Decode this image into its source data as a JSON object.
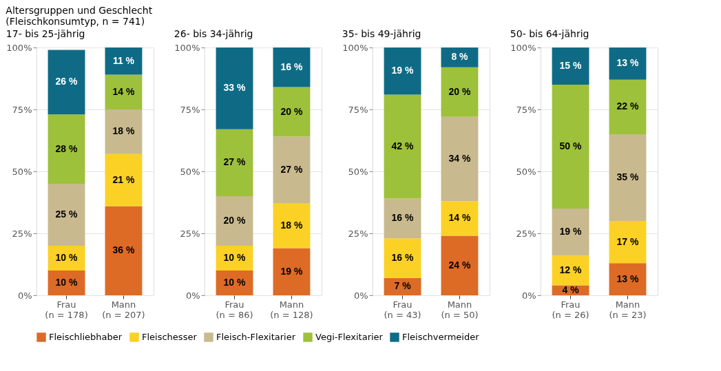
{
  "chart_data": [
    {
      "type": "bar",
      "title": "17- bis 25-jährig",
      "annotations": [
        "Altersgruppen und Geschlecht\n(Fleischkonsumtyp, n = 741)"
      ],
      "categories": [
        "Frau\n(n = 178)",
        "Mann\n(n = 207)"
      ],
      "stacked": true,
      "ylim": [
        0,
        100
      ],
      "yticks": [
        {
          "value": 0,
          "label": "0%"
        },
        {
          "value": 25,
          "label": "25%"
        },
        {
          "value": 50,
          "label": "50%"
        },
        {
          "value": 75,
          "label": "75%"
        },
        {
          "value": 100,
          "label": "100%"
        }
      ],
      "grid": "y",
      "legend": "bottom",
      "series": [
        {
          "name": "Fleischliebhaber",
          "color": "#dd6b26",
          "values": [
            10,
            36
          ],
          "value_labels": [
            "10 %",
            "36 %"
          ]
        },
        {
          "name": "Fleischesser",
          "color": "#fbd125",
          "values": [
            10,
            21
          ],
          "value_labels": [
            "10 %",
            "21 %"
          ]
        },
        {
          "name": "Fleisch-Flexitarier",
          "color": "#c9b98e",
          "values": [
            25,
            18
          ],
          "value_labels": [
            "25 %",
            "18 %"
          ]
        },
        {
          "name": "Vegi-Flexitarier",
          "color": "#9dc13b",
          "values": [
            28,
            14
          ],
          "value_labels": [
            "28 %",
            "14 %"
          ]
        },
        {
          "name": "Fleischvermeider",
          "color": "#0f6b85",
          "values": [
            26,
            11
          ],
          "value_labels": [
            "26 %",
            "11 %"
          ]
        }
      ]
    },
    {
      "type": "bar",
      "title": "26- bis 34-jährig",
      "categories": [
        "Frau\n(n = 86)",
        "Mann\n(n = 128)"
      ],
      "stacked": true,
      "ylim": [
        0,
        100
      ],
      "yticks": [
        {
          "value": 0,
          "label": "0%"
        },
        {
          "value": 25,
          "label": "25%"
        },
        {
          "value": 50,
          "label": "50%"
        },
        {
          "value": 75,
          "label": "75%"
        },
        {
          "value": 100,
          "label": "100%"
        }
      ],
      "grid": "y",
      "series": [
        {
          "name": "Fleischliebhaber",
          "color": "#dd6b26",
          "values": [
            10,
            19
          ],
          "value_labels": [
            "10 %",
            "19 %"
          ]
        },
        {
          "name": "Fleischesser",
          "color": "#fbd125",
          "values": [
            10,
            18
          ],
          "value_labels": [
            "10 %",
            "18 %"
          ]
        },
        {
          "name": "Fleisch-Flexitarier",
          "color": "#c9b98e",
          "values": [
            20,
            27
          ],
          "value_labels": [
            "20 %",
            "27 %"
          ]
        },
        {
          "name": "Vegi-Flexitarier",
          "color": "#9dc13b",
          "values": [
            27,
            20
          ],
          "value_labels": [
            "27 %",
            "20 %"
          ]
        },
        {
          "name": "Fleischvermeider",
          "color": "#0f6b85",
          "values": [
            33,
            16
          ],
          "value_labels": [
            "33 %",
            "16 %"
          ]
        }
      ]
    },
    {
      "type": "bar",
      "title": "35- bis 49-jährig",
      "categories": [
        "Frau\n(n = 43)",
        "Mann\n(n = 50)"
      ],
      "stacked": true,
      "ylim": [
        0,
        100
      ],
      "yticks": [
        {
          "value": 0,
          "label": "0%"
        },
        {
          "value": 25,
          "label": "25%"
        },
        {
          "value": 50,
          "label": "50%"
        },
        {
          "value": 75,
          "label": "75%"
        },
        {
          "value": 100,
          "label": "100%"
        }
      ],
      "grid": "y",
      "series": [
        {
          "name": "Fleischliebhaber",
          "color": "#dd6b26",
          "values": [
            7,
            24
          ],
          "value_labels": [
            "7 %",
            "24 %"
          ]
        },
        {
          "name": "Fleischesser",
          "color": "#fbd125",
          "values": [
            16,
            14
          ],
          "value_labels": [
            "16 %",
            "14 %"
          ]
        },
        {
          "name": "Fleisch-Flexitarier",
          "color": "#c9b98e",
          "values": [
            16,
            34
          ],
          "value_labels": [
            "16 %",
            "34 %"
          ]
        },
        {
          "name": "Vegi-Flexitarier",
          "color": "#9dc13b",
          "values": [
            42,
            20
          ],
          "value_labels": [
            "42 %",
            "20 %"
          ]
        },
        {
          "name": "Fleischvermeider",
          "color": "#0f6b85",
          "values": [
            19,
            8
          ],
          "value_labels": [
            "19 %",
            "8 %"
          ]
        }
      ]
    },
    {
      "type": "bar",
      "title": "50- bis 64-jährig",
      "categories": [
        "Frau\n(n = 26)",
        "Mann\n(n = 23)"
      ],
      "stacked": true,
      "ylim": [
        0,
        100
      ],
      "yticks": [
        {
          "value": 0,
          "label": "0%"
        },
        {
          "value": 25,
          "label": "25%"
        },
        {
          "value": 50,
          "label": "50%"
        },
        {
          "value": 75,
          "label": "75%"
        },
        {
          "value": 100,
          "label": "100%"
        }
      ],
      "grid": "y",
      "series": [
        {
          "name": "Fleischliebhaber",
          "color": "#dd6b26",
          "values": [
            4,
            13
          ],
          "value_labels": [
            "4 %",
            "13 %"
          ]
        },
        {
          "name": "Fleischesser",
          "color": "#fbd125",
          "values": [
            12,
            17
          ],
          "value_labels": [
            "12 %",
            "17 %"
          ]
        },
        {
          "name": "Fleisch-Flexitarier",
          "color": "#c9b98e",
          "values": [
            19,
            35
          ],
          "value_labels": [
            "19 %",
            "35 %"
          ]
        },
        {
          "name": "Vegi-Flexitarier",
          "color": "#9dc13b",
          "values": [
            50,
            22
          ],
          "value_labels": [
            "50 %",
            "22 %"
          ]
        },
        {
          "name": "Fleischvermeider",
          "color": "#0f6b85",
          "values": [
            15,
            13
          ],
          "value_labels": [
            "15 %",
            "13 %"
          ]
        }
      ]
    }
  ]
}
